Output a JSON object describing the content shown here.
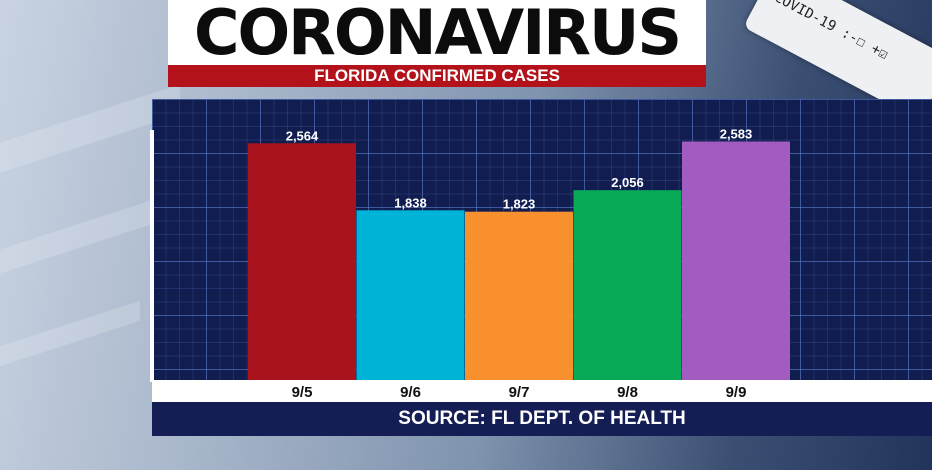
{
  "header": {
    "title": "CORONAVIRUS",
    "subtitle": "FLORIDA CONFIRMED CASES"
  },
  "background": {
    "vial_text": "COVID-19 :-☐ +☑"
  },
  "footer": {
    "source": "SOURCE: FL DEPT. OF HEALTH"
  },
  "colors": {
    "title_bg": "#ffffff",
    "subtitle_bg": "#b3121a",
    "panel_bg": "#111c4f"
  },
  "chart_data": {
    "type": "bar",
    "title": "",
    "xlabel": "",
    "ylabel": "",
    "grid": true,
    "ylim": [
      0,
      3000
    ],
    "categories": [
      "9/5",
      "9/6",
      "9/7",
      "9/8",
      "9/9"
    ],
    "values": [
      2564,
      1838,
      1823,
      2056,
      2583
    ],
    "value_labels": [
      "2,564",
      "1,838",
      "1,823",
      "2,056",
      "2,583"
    ],
    "colors": [
      "#a8131d",
      "#00b4d8",
      "#f7902d",
      "#08a957",
      "#a25bbf"
    ]
  }
}
